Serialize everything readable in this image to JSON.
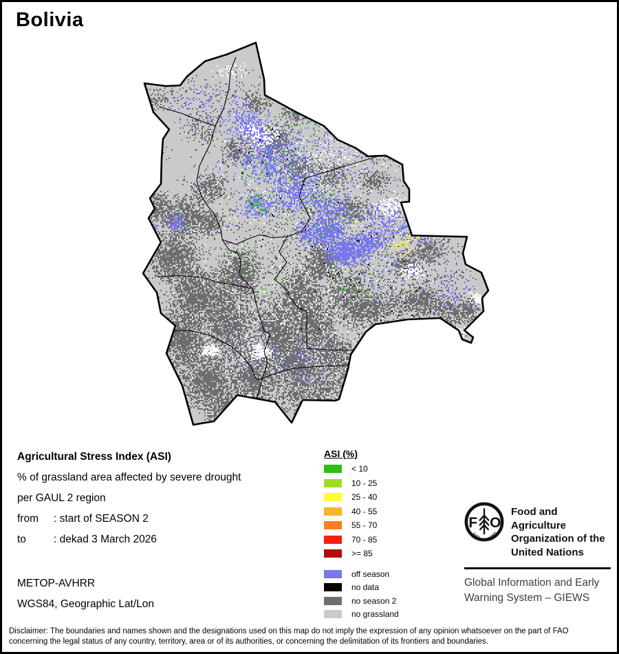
{
  "title": "Bolivia",
  "info": {
    "heading": "Agricultural Stress Index (ASI)",
    "subtitle1": "% of grassland area affected by severe drought",
    "subtitle2": "per GAUL 2 region",
    "from_label": "from",
    "from_value": ": start of SEASON 2",
    "to_label": "to",
    "to_value": ": dekad 3 March 2026",
    "sensor": "METOP-AVHRR",
    "projection": "WGS84, Geographic Lat/Lon"
  },
  "legend": {
    "title": "ASI (%)",
    "classes": [
      {
        "label": "< 10",
        "color": "#2fbe11"
      },
      {
        "label": "10 - 25",
        "color": "#9edc28"
      },
      {
        "label": "25 - 40",
        "color": "#fdfd37"
      },
      {
        "label": "40 - 55",
        "color": "#fcb32a"
      },
      {
        "label": "55 - 70",
        "color": "#f97e20"
      },
      {
        "label": "70 - 85",
        "color": "#fa1d0e"
      },
      {
        "label": ">= 85",
        "color": "#b20d12"
      }
    ],
    "extra": [
      {
        "label": "off season",
        "color": "#7878ee"
      },
      {
        "label": "no data",
        "color": "#000000"
      },
      {
        "label": "no season 2",
        "color": "#6e6e6e"
      },
      {
        "label": "no grassland",
        "color": "#cacaca"
      }
    ]
  },
  "fao": {
    "logo_letter_f": "F",
    "logo_letter_o": "O",
    "motto_left": "FIAT",
    "motto_right": "PANIS",
    "org_lines": [
      "Food and Agriculture",
      "Organization of the",
      "United Nations"
    ],
    "giews_lines": [
      "Global Information and Early",
      "Warning System – GIEWS"
    ]
  },
  "disclaimer": [
    "Disclaimer: The boundaries and names shown and the designations used on this map do not imply the expression of any opinion whatsoever on the part of FAO",
    "concerning the legal status of any country, territory, area or of its authorities, or concerning the delimitation of its frontiers and boundaries."
  ]
}
